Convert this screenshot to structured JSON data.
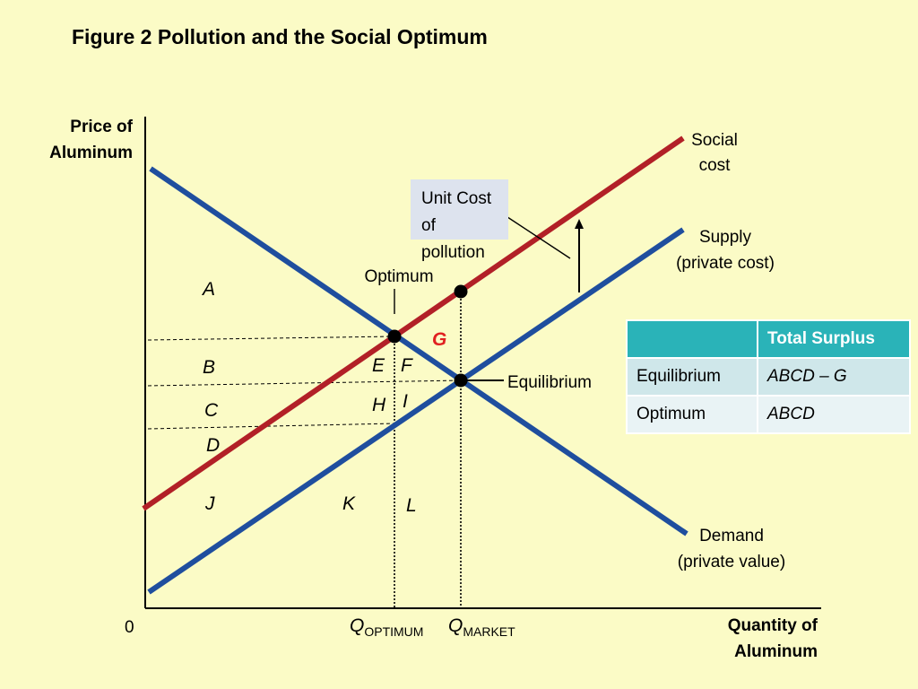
{
  "title": "Figure 2 Pollution and the Social Optimum",
  "axes": {
    "y_label_line1": "Price of",
    "y_label_line2": "Aluminum",
    "x_label_line1": "Quantity of",
    "x_label_line2": "Aluminum",
    "origin": "0"
  },
  "ticks": {
    "q_optimum_main": "Q",
    "q_optimum_sub": "OPTIMUM",
    "q_market_main": "Q",
    "q_market_sub": "MARKET"
  },
  "curves": {
    "social_cost_line1": "Social",
    "social_cost_line2": "cost",
    "supply_line1": "Supply",
    "supply_line2": "(private cost)",
    "demand_line1": "Demand",
    "demand_line2": "(private value)"
  },
  "annotations": {
    "unit_cost_line1": "Unit Cost of",
    "unit_cost_line2": "pollution",
    "optimum": "Optimum",
    "equilibrium": "Equilibrium"
  },
  "areas": {
    "A": "A",
    "B": "B",
    "C": "C",
    "D": "D",
    "E": "E",
    "F": "F",
    "G": "G",
    "H": "H",
    "I": "I",
    "J": "J",
    "K": "K",
    "L": "L"
  },
  "table": {
    "header_empty": "",
    "header": "Total Surplus",
    "rows": [
      {
        "label": "Equilibrium",
        "value": "ABCD – G"
      },
      {
        "label": "Optimum",
        "value": "ABCD"
      }
    ]
  },
  "colors": {
    "background": "#fbfbc6",
    "blue_lines": "#1f4e9e",
    "social_cost": "#b22027",
    "table_header": "#2ab3b8",
    "area_G": "#e02020"
  }
}
